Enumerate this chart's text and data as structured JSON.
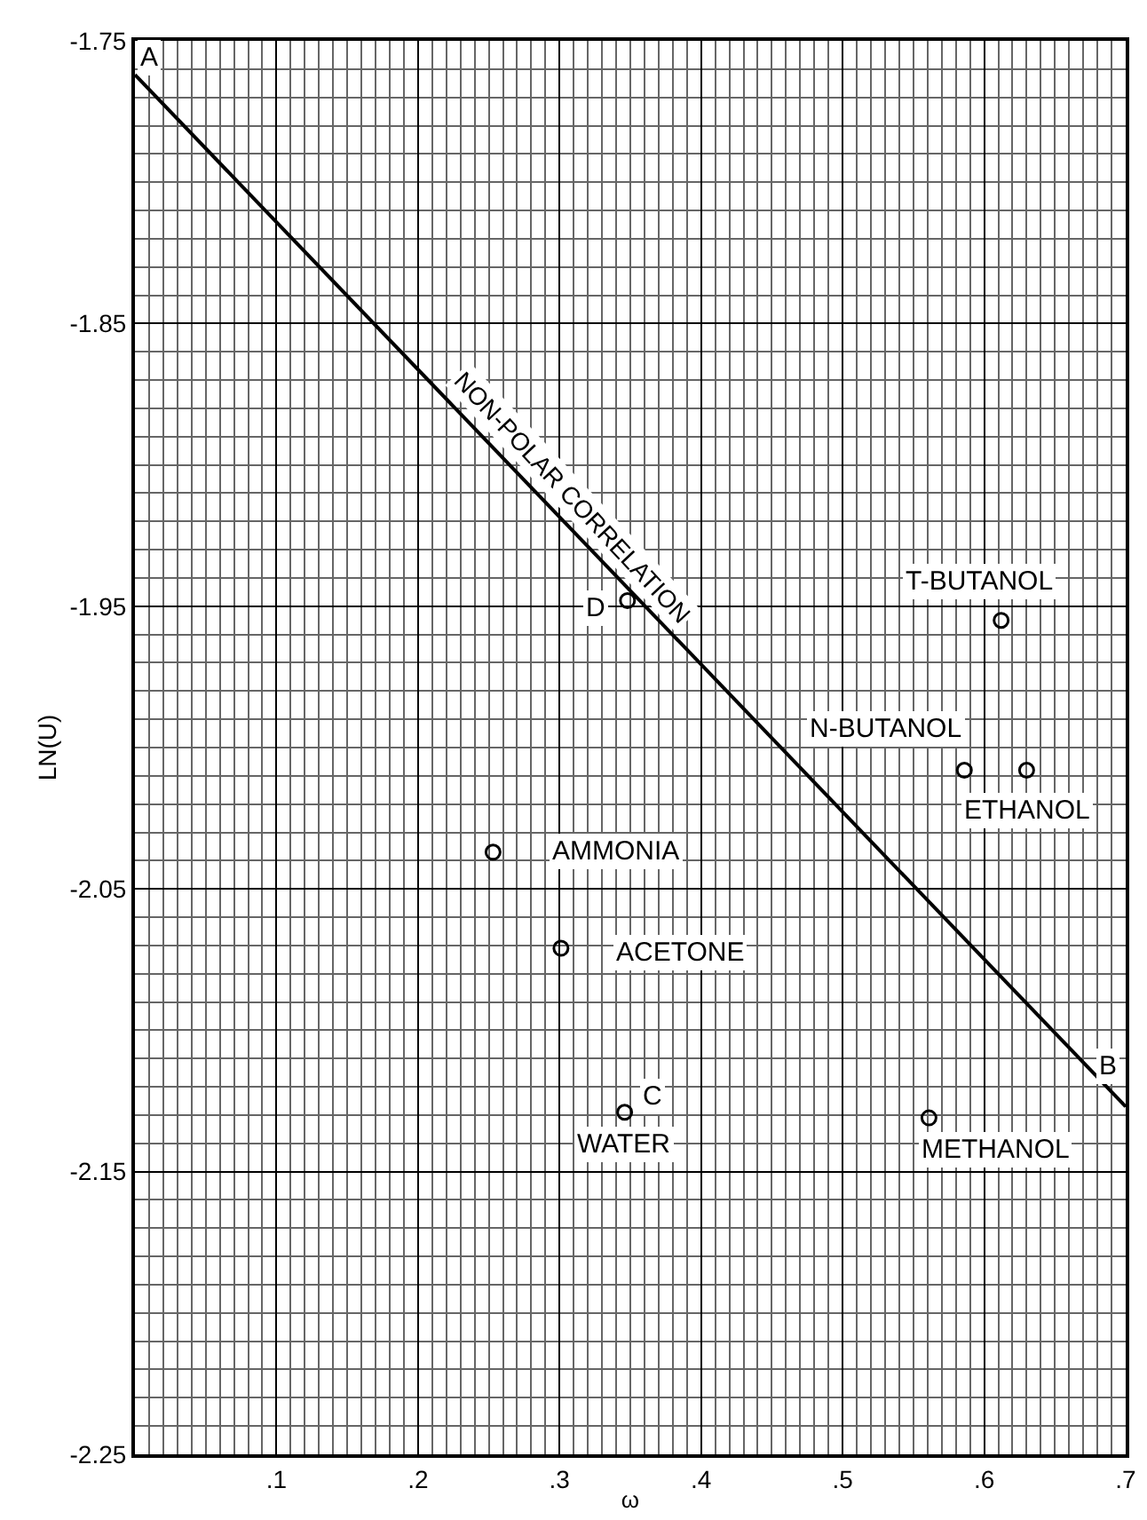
{
  "chart_data": {
    "type": "scatter",
    "xlabel": "ω",
    "ylabel": "LN(U)",
    "xlim": [
      0,
      0.7
    ],
    "ylim": [
      -2.25,
      -1.75
    ],
    "xticks": [
      {
        "value": 0.1,
        "label": ".1"
      },
      {
        "value": 0.2,
        "label": ".2"
      },
      {
        "value": 0.3,
        "label": ".3"
      },
      {
        "value": 0.4,
        "label": ".4"
      },
      {
        "value": 0.5,
        "label": ".5"
      },
      {
        "value": 0.6,
        "label": ".6"
      },
      {
        "value": 0.7,
        "label": ".7"
      }
    ],
    "yticks": [
      {
        "value": -1.75,
        "label": "-1.75"
      },
      {
        "value": -1.85,
        "label": "-1.85"
      },
      {
        "value": -1.95,
        "label": "-1.95"
      },
      {
        "value": -2.05,
        "label": "-2.05"
      },
      {
        "value": -2.15,
        "label": "-2.15"
      },
      {
        "value": -2.25,
        "label": "-2.25"
      }
    ],
    "grid": true,
    "marker": "circle",
    "series": [
      {
        "type": "line",
        "color": "#000000",
        "x": [
          0,
          0.7
        ],
        "values": [
          -1.762,
          -2.127
        ],
        "marker": "none",
        "line_style": "solid"
      },
      {
        "type": "scatter",
        "color": "#000000",
        "x": [
          0.612,
          0.586,
          0.63,
          0.253,
          0.301,
          0.346,
          0.561,
          0.348
        ],
        "values": [
          -1.955,
          -2.008,
          -2.008,
          -2.037,
          -2.071,
          -2.129,
          -2.131,
          -1.948
        ]
      }
    ],
    "annotations": [
      {
        "text": "NON-POLAR CORRELATION",
        "x": 0.298,
        "y": -1.917
      },
      {
        "text": "A",
        "x": 0,
        "y": -1.762
      },
      {
        "text": "B",
        "x": 0.7,
        "y": -2.127
      },
      {
        "text": "C",
        "x": 0.346,
        "y": -2.129
      },
      {
        "text": "D",
        "x": 0.348,
        "y": -1.948
      },
      {
        "text": "T-BUTANOL",
        "x": 0.612,
        "y": -1.955
      },
      {
        "text": "N-BUTANOL",
        "x": 0.586,
        "y": -2.008
      },
      {
        "text": "ETHANOL",
        "x": 0.63,
        "y": -2.008
      },
      {
        "text": "AMMONIA",
        "x": 0.253,
        "y": -2.037
      },
      {
        "text": "ACETONE",
        "x": 0.301,
        "y": -2.071
      },
      {
        "text": "WATER",
        "x": 0.346,
        "y": -2.129
      },
      {
        "text": "METHANOL",
        "x": 0.561,
        "y": -2.131
      }
    ]
  }
}
